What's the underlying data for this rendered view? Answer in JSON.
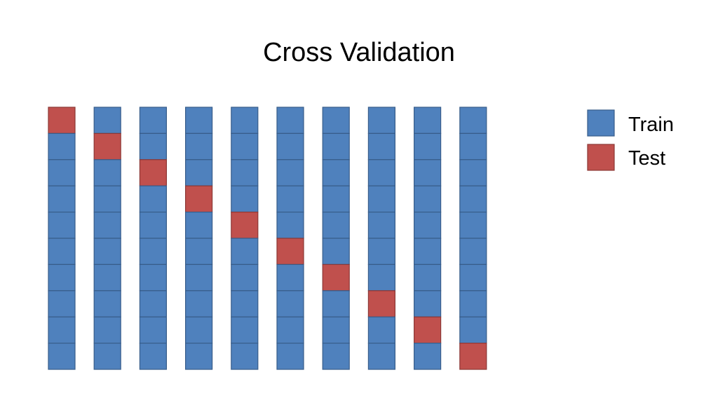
{
  "title": "Cross Validation",
  "folds": 10,
  "cells_per_fold": 10,
  "test_index_per_fold": [
    0,
    1,
    2,
    3,
    4,
    5,
    6,
    7,
    8,
    9
  ],
  "colors": {
    "train_fill": "#4f81bd",
    "test_fill": "#c0504d",
    "train_stroke": "#385d8a",
    "test_stroke": "#8c3836"
  },
  "legend": {
    "train_label": "Train",
    "test_label": "Test"
  }
}
